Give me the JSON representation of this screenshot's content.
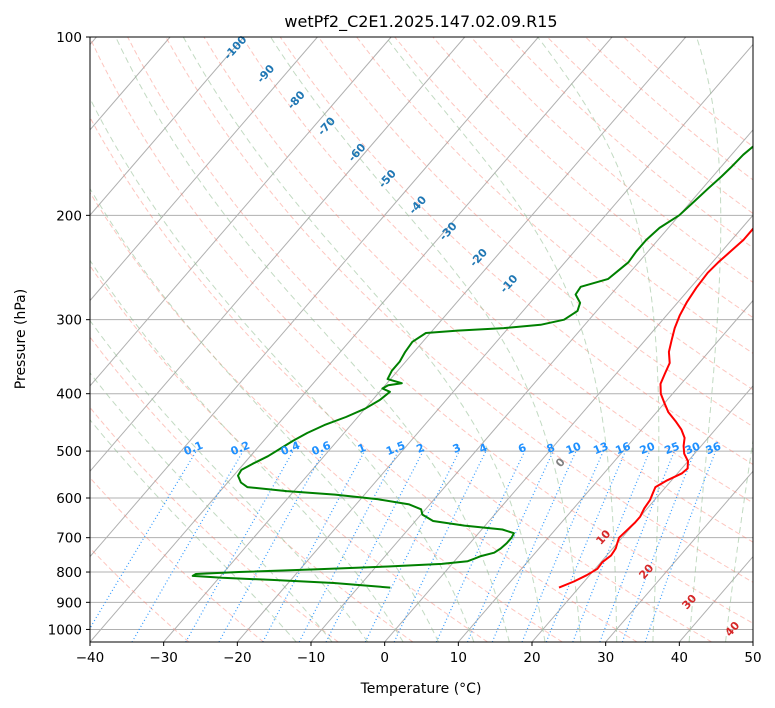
{
  "chart_data": {
    "type": "line",
    "title": "wetPf2_C2E1.2025.147.02.09.R15",
    "xlabel": "Temperature (°C)",
    "ylabel": "Pressure (hPa)",
    "xlim": [
      -40,
      50
    ],
    "ylim": [
      1050,
      100
    ],
    "y_scale": "log",
    "grid": true,
    "x_ticks": [
      "−40",
      "−30",
      "−20",
      "−10",
      "0",
      "10",
      "20",
      "30",
      "40",
      "50"
    ],
    "y_ticks": [
      "100",
      "200",
      "300",
      "400",
      "500",
      "600",
      "700",
      "800",
      "900",
      "1000"
    ],
    "series": [
      {
        "color": "#ff0000",
        "points": [
          [
            17.3,
            850
          ],
          [
            18.6,
            830
          ],
          [
            19.6,
            810
          ],
          [
            20.3,
            790
          ],
          [
            20.2,
            770
          ],
          [
            20.6,
            750
          ],
          [
            20.4,
            730
          ],
          [
            20.0,
            715
          ],
          [
            19.6,
            700
          ],
          [
            19.8,
            680
          ],
          [
            20.0,
            660
          ],
          [
            20.0,
            645
          ],
          [
            19.6,
            625
          ],
          [
            19.4,
            605
          ],
          [
            19.0,
            590
          ],
          [
            18.6,
            575
          ],
          [
            19.4,
            560
          ],
          [
            20.6,
            545
          ],
          [
            20.8,
            535
          ],
          [
            20.0,
            520
          ],
          [
            18.6,
            505
          ],
          [
            17.6,
            490
          ],
          [
            16.8,
            475
          ],
          [
            15.4,
            460
          ],
          [
            13.6,
            445
          ],
          [
            11.6,
            430
          ],
          [
            10.0,
            415
          ],
          [
            8.4,
            400
          ],
          [
            7.2,
            385
          ],
          [
            6.6,
            370
          ],
          [
            6.0,
            355
          ],
          [
            4.6,
            340
          ],
          [
            3.6,
            325
          ],
          [
            2.6,
            310
          ],
          [
            1.8,
            295
          ],
          [
            1.2,
            280
          ],
          [
            0.8,
            265
          ],
          [
            0.6,
            250
          ],
          [
            0.8,
            240
          ],
          [
            1.2,
            230
          ],
          [
            1.6,
            220
          ],
          [
            1.6,
            210
          ],
          [
            1.4,
            200
          ],
          [
            1.4,
            190
          ],
          [
            2.4,
            181
          ],
          [
            4.4,
            174
          ],
          [
            5.6,
            167
          ],
          [
            6.2,
            160
          ],
          [
            7.6,
            152
          ],
          [
            9.4,
            143
          ],
          [
            11.0,
            134
          ],
          [
            12.8,
            126
          ],
          [
            14.6,
            119
          ],
          [
            16.2,
            113
          ],
          [
            17.6,
            108
          ],
          [
            18.6,
            104
          ],
          [
            19.4,
            100
          ]
        ]
      },
      {
        "color": "#008000",
        "points": [
          [
            -5.6,
            850
          ],
          [
            -13.8,
            835
          ],
          [
            -22.6,
            825
          ],
          [
            -29.6,
            818
          ],
          [
            -33.8,
            812
          ],
          [
            -33.6,
            806
          ],
          [
            -28.0,
            800
          ],
          [
            -18.0,
            792
          ],
          [
            -8.4,
            783
          ],
          [
            -1.4,
            775
          ],
          [
            1.8,
            767
          ],
          [
            2.4,
            760
          ],
          [
            3.0,
            752
          ],
          [
            4.4,
            742
          ],
          [
            4.8,
            730
          ],
          [
            5.0,
            715
          ],
          [
            5.0,
            700
          ],
          [
            4.8,
            688
          ],
          [
            2.8,
            678
          ],
          [
            -2.8,
            668
          ],
          [
            -7.6,
            656
          ],
          [
            -9.8,
            640
          ],
          [
            -10.6,
            627
          ],
          [
            -12.8,
            615
          ],
          [
            -17.6,
            603
          ],
          [
            -24.0,
            592
          ],
          [
            -31.0,
            584
          ],
          [
            -36.8,
            575
          ],
          [
            -38.2,
            565
          ],
          [
            -39.4,
            550
          ],
          [
            -39.6,
            538
          ],
          [
            -38.8,
            525
          ],
          [
            -37.6,
            510
          ],
          [
            -36.8,
            495
          ],
          [
            -36.0,
            480
          ],
          [
            -35.0,
            466
          ],
          [
            -33.6,
            452
          ],
          [
            -31.6,
            438
          ],
          [
            -30.0,
            424
          ],
          [
            -29.0,
            410
          ],
          [
            -28.6,
            397
          ],
          [
            -30.0,
            392
          ],
          [
            -29.6,
            387
          ],
          [
            -28.0,
            384
          ],
          [
            -30.4,
            378
          ],
          [
            -30.8,
            366
          ],
          [
            -30.8,
            353
          ],
          [
            -31.2,
            340
          ],
          [
            -31.4,
            327
          ],
          [
            -30.6,
            316
          ],
          [
            -26.6,
            313
          ],
          [
            -20.6,
            310
          ],
          [
            -16.0,
            306
          ],
          [
            -13.4,
            300
          ],
          [
            -12.6,
            290
          ],
          [
            -13.2,
            281
          ],
          [
            -14.8,
            272
          ],
          [
            -15.0,
            264
          ],
          [
            -12.2,
            256
          ],
          [
            -11.8,
            248
          ],
          [
            -11.4,
            240
          ],
          [
            -11.6,
            230
          ],
          [
            -11.6,
            220
          ],
          [
            -11.2,
            210
          ],
          [
            -10.0,
            200
          ],
          [
            -9.6,
            190
          ],
          [
            -9.2,
            180
          ],
          [
            -8.8,
            172
          ],
          [
            -8.6,
            166
          ],
          [
            -8.4,
            158
          ],
          [
            -7.8,
            150
          ],
          [
            -6.4,
            142
          ],
          [
            -5.4,
            134
          ],
          [
            -5.0,
            124
          ],
          [
            -4.4,
            117
          ],
          [
            -3.8,
            111
          ],
          [
            -2.4,
            106
          ],
          [
            -1.2,
            100
          ]
        ]
      }
    ],
    "annotations": {
      "dry_adiabat_labels": [
        "-100",
        "-90",
        "-80",
        "-70",
        "-60",
        "-50",
        "-40",
        "-30",
        "-20",
        "-10"
      ],
      "mixing_ratio_labels": [
        "0.1",
        "0.2",
        "0.4",
        "0.6",
        "1",
        "1.5",
        "2",
        "3",
        "4",
        "6",
        "8",
        "10",
        "13",
        "16",
        "20",
        "25",
        "30",
        "36"
      ],
      "moist_adiabat_labels": [
        "0",
        "10",
        "20",
        "30",
        "40"
      ]
    },
    "colors": {
      "temperature": "#ff0000",
      "dewpoint": "#008000",
      "dry_adiabat": "#fa8072",
      "moist_adiabat": "#8fbc8f",
      "mixing_ratio": "#1e90ff",
      "label_dry": "#1f77b4",
      "label_moist": "#d62728",
      "label_zero": "#808080"
    }
  }
}
